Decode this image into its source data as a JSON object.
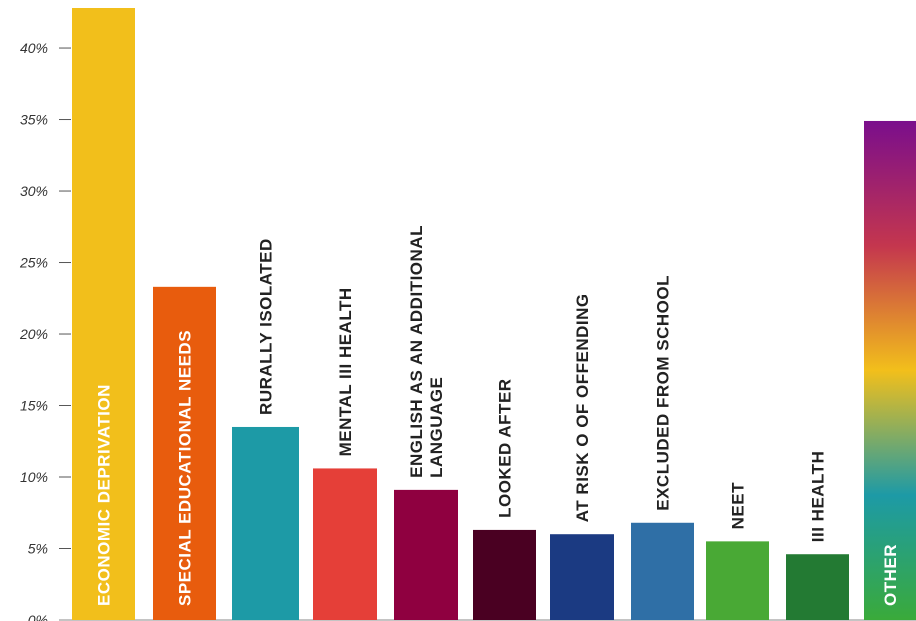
{
  "chart_data": {
    "type": "bar",
    "categories": [
      [
        "ECONOMIC DEPRIVATION"
      ],
      [
        "SPECIAL EDUCATIONAL NEEDS"
      ],
      [
        "RURALLY ISOLATED"
      ],
      [
        "MENTAL III HEALTH"
      ],
      [
        "ENGLISH AS AN ADDITIONAL",
        "LANGUAGE"
      ],
      [
        "LOOKED AFTER"
      ],
      [
        "AT RISK O OF OFFENDING"
      ],
      [
        "EXCLUDED FROM SCHOOL"
      ],
      [
        "NEET"
      ],
      [
        "III HEALTH"
      ],
      [
        "OTHER"
      ]
    ],
    "values": [
      42.8,
      23.3,
      13.5,
      10.6,
      9.1,
      6.3,
      6.0,
      6.8,
      5.5,
      4.6,
      34.9
    ],
    "colors": [
      "#f2bf1b",
      "#e85c0d",
      "#1d9aa6",
      "#e53f38",
      "#8f0040",
      "#4a0022",
      "#1b3a82",
      "#2f6fa6",
      "#49a935",
      "#237a33",
      "gradient"
    ],
    "label_colors": [
      "#ffffff",
      "#ffffff",
      "#222222",
      "#222222",
      "#222222",
      "#222222",
      "#222222",
      "#222222",
      "#222222",
      "#222222",
      "#ffffff"
    ],
    "gradient_stops": [
      "#7a0e8c",
      "#c4364e",
      "#f2bf1b",
      "#1d9aa6",
      "#3aaa3a"
    ],
    "yticks": [
      "0%",
      "5%",
      "10%",
      "15%",
      "20%",
      "25%",
      "30%",
      "35%",
      "40%"
    ],
    "ytick_values": [
      0,
      5,
      10,
      15,
      20,
      25,
      30,
      35,
      40
    ],
    "ylim": [
      0,
      42.8
    ],
    "grid": false,
    "title": "",
    "xlabel": "",
    "ylabel": ""
  }
}
